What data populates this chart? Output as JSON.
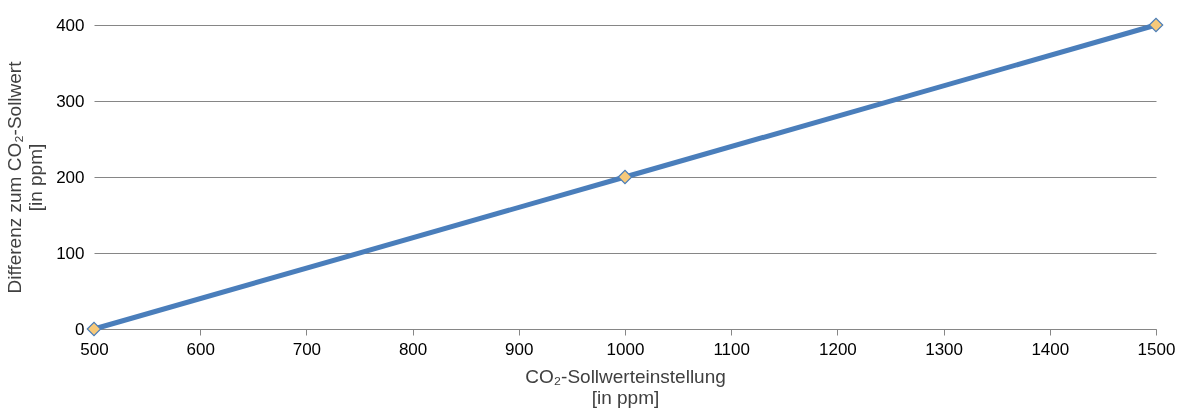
{
  "chart_data": {
    "type": "line",
    "xlabel": "CO₂-Sollwerteinstellung\n[in ppm]",
    "ylabel": "Differenz zum CO₂-Sollwert\n[in ppm]",
    "x": [
      500,
      1000,
      1500
    ],
    "series": [
      {
        "color": "#4a7ebb",
        "values": [
          0,
          200,
          400
        ]
      }
    ],
    "xlim": [
      500,
      1500
    ],
    "xticks": [
      500,
      600,
      700,
      800,
      900,
      1000,
      1100,
      1200,
      1300,
      1400,
      1500
    ],
    "ylim": [
      0,
      400
    ],
    "yticks": [
      0,
      100,
      200,
      300,
      400
    ],
    "grid": "y",
    "marker": "diamond",
    "line_style": "solid",
    "legend": false
  }
}
